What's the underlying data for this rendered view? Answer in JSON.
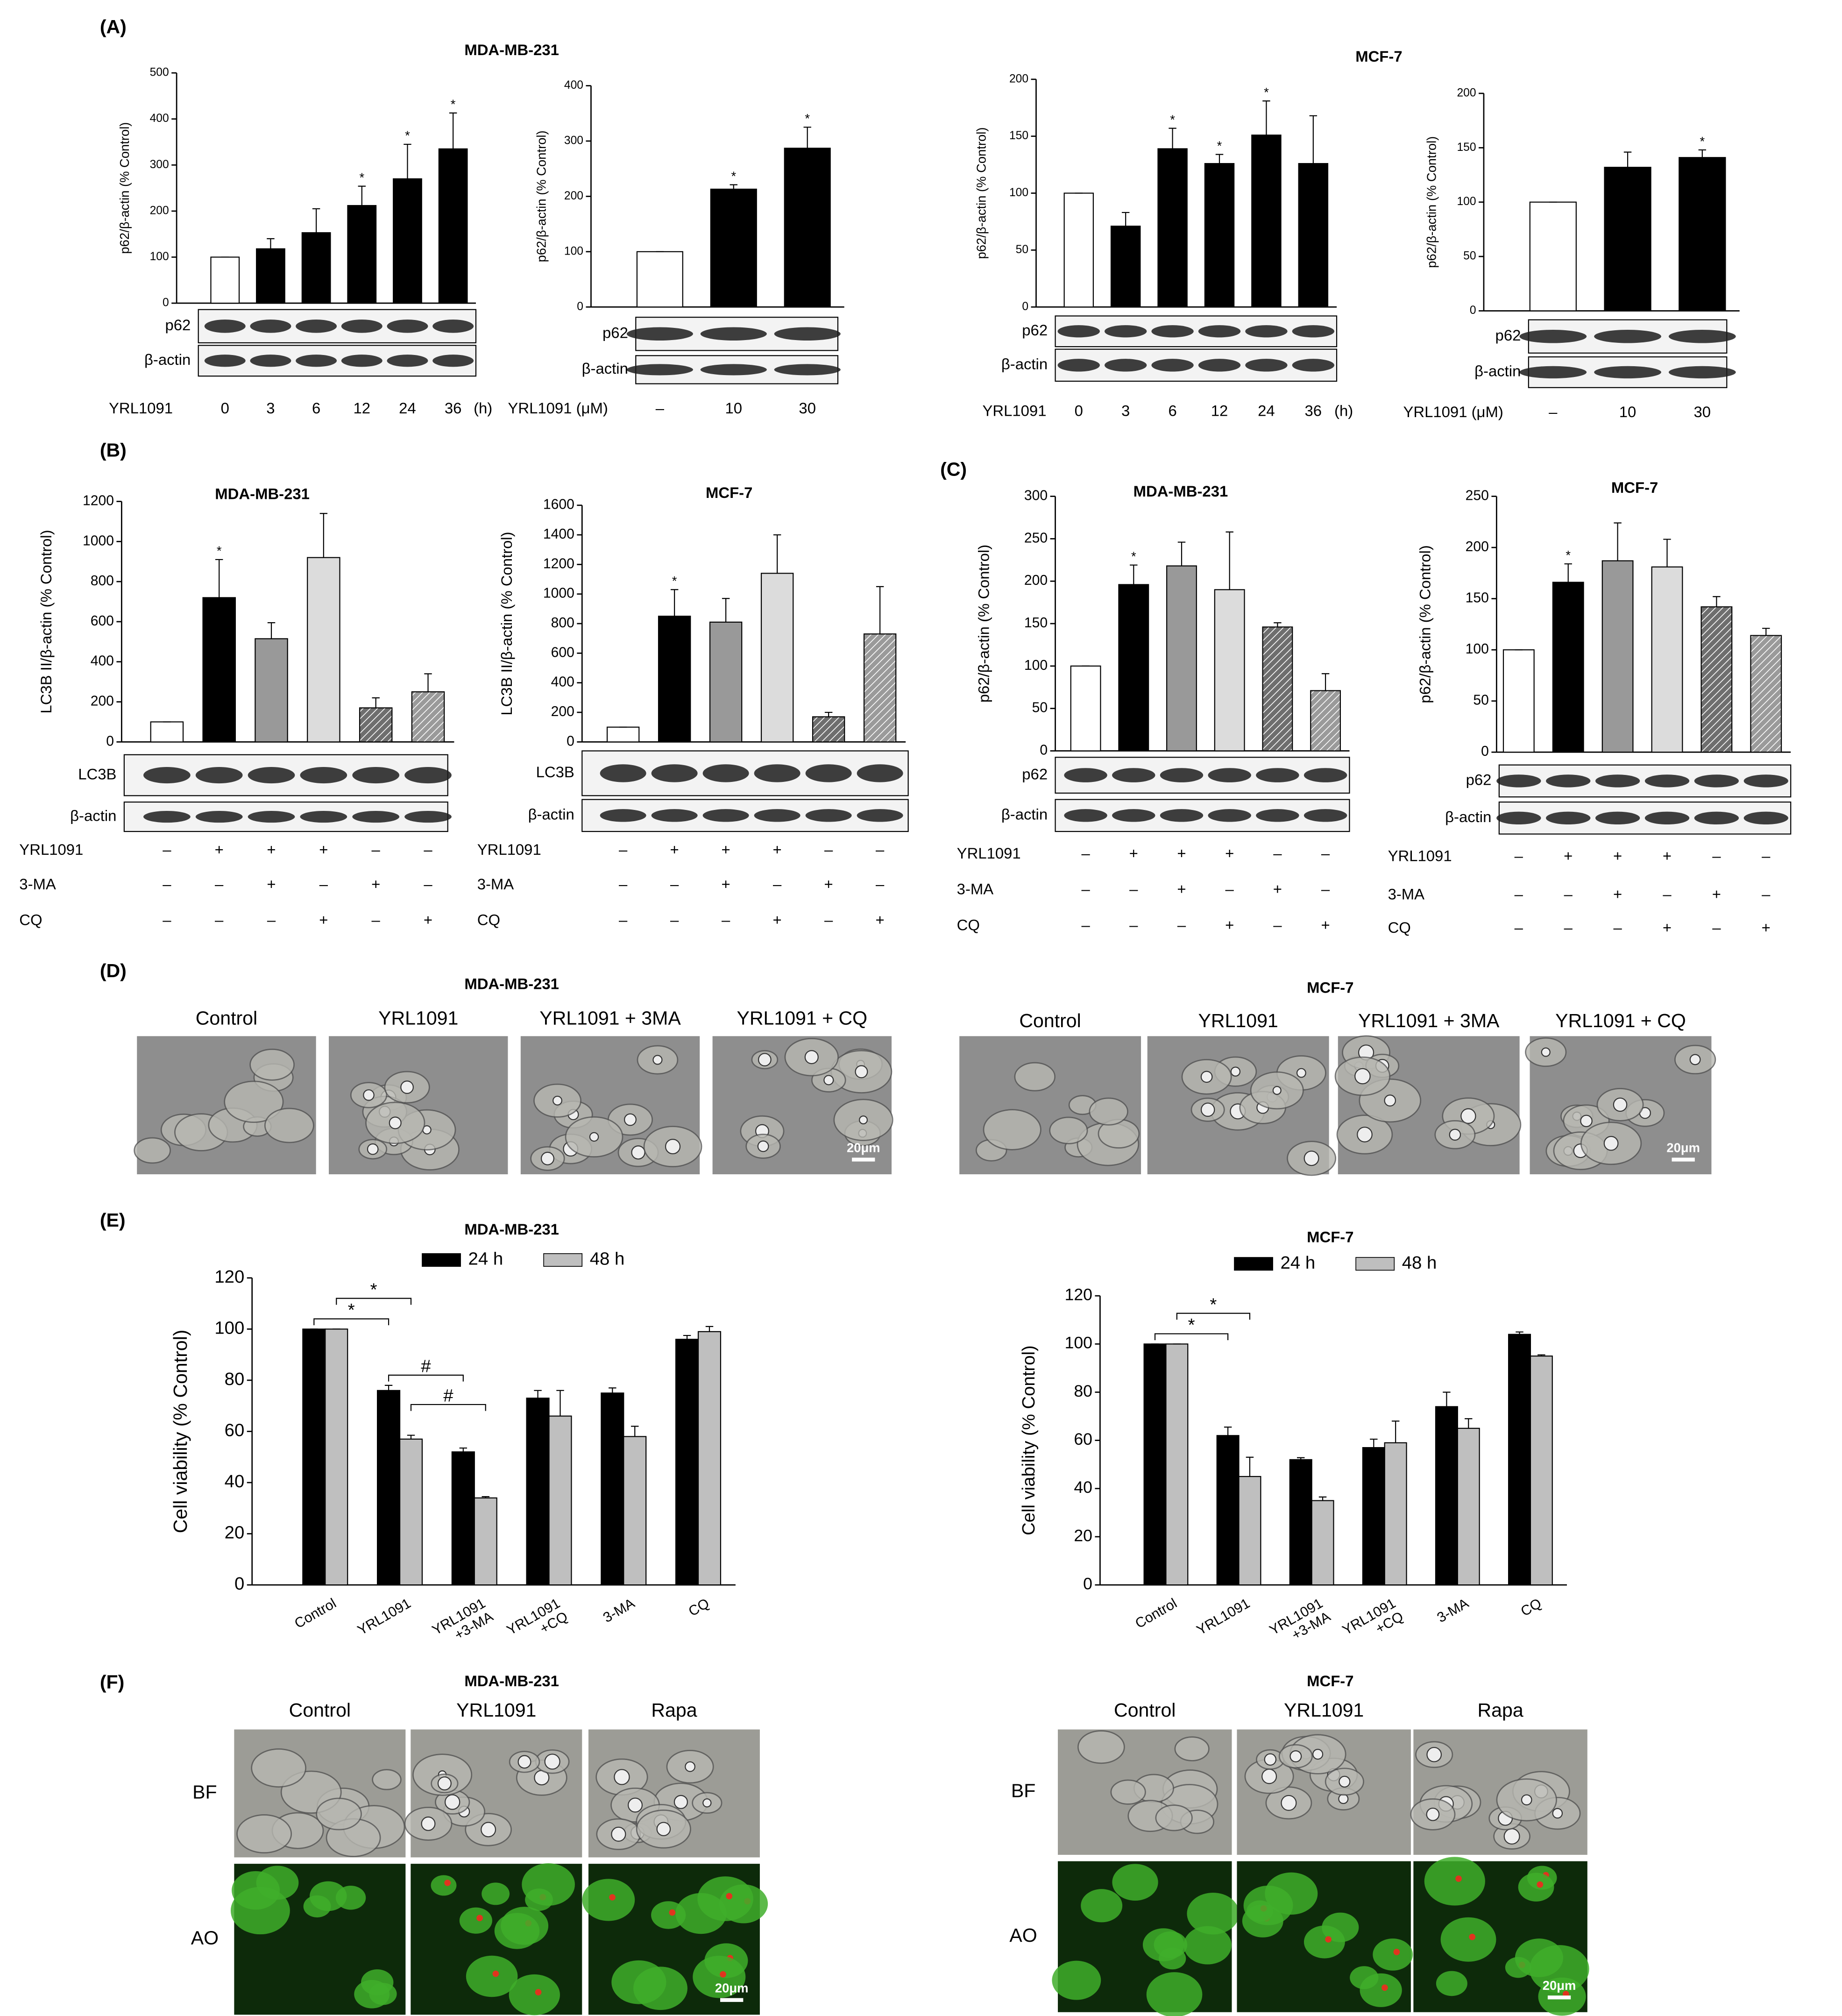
{
  "chart_data": [
    {
      "type": "bar",
      "panel": "(A)",
      "title": "MDA-MB-231",
      "ylabel": "p62/β-actin (% Control)",
      "values": [
        100,
        118,
        153,
        212,
        270,
        335
      ],
      "errors": [
        0,
        22,
        52,
        42,
        75,
        78
      ],
      "significance": [
        null,
        null,
        null,
        "*",
        "*",
        "*"
      ],
      "colors": [
        "#ffffff",
        "#000000",
        "#000000",
        "#000000",
        "#000000",
        "#000000"
      ],
      "ylim": [
        0,
        500
      ],
      "yticks": [
        0,
        100,
        200,
        300,
        400,
        500
      ],
      "blot_labels": [
        "p62",
        "β-actin"
      ],
      "treatments": [
        {
          "name": "YRL1091",
          "values": [
            "0",
            "3",
            "6",
            "12",
            "24",
            "36"
          ]
        }
      ],
      "x_unit": "(h)"
    },
    {
      "type": "bar",
      "ylabel": "p62/β-actin (% Control)",
      "values": [
        100,
        213,
        287
      ],
      "errors": [
        0,
        8,
        38
      ],
      "significance": [
        null,
        "*",
        "*"
      ],
      "colors": [
        "#ffffff",
        "#000000",
        "#000000"
      ],
      "ylim": [
        0,
        400
      ],
      "yticks": [
        0,
        100,
        200,
        300,
        400
      ],
      "blot_labels": [
        "p62",
        "β-actin"
      ],
      "treatments": [
        {
          "name": "YRL1091 (μM)",
          "values": [
            "–",
            "10",
            "30"
          ]
        }
      ]
    },
    {
      "type": "bar",
      "title": "MCF-7",
      "ylabel": "p62/β-actin (% Control)",
      "values": [
        100,
        71,
        139,
        126,
        151,
        126
      ],
      "errors": [
        0,
        12,
        18,
        8,
        30,
        42
      ],
      "significance": [
        null,
        null,
        "*",
        "*",
        "*",
        null
      ],
      "colors": [
        "#ffffff",
        "#000000",
        "#000000",
        "#000000",
        "#000000",
        "#000000"
      ],
      "ylim": [
        0,
        200
      ],
      "yticks": [
        0,
        50,
        100,
        150,
        200
      ],
      "blot_labels": [
        "p62",
        "β-actin"
      ],
      "treatments": [
        {
          "name": "YRL1091",
          "values": [
            "0",
            "3",
            "6",
            "12",
            "24",
            "36"
          ]
        }
      ],
      "x_unit": "(h)"
    },
    {
      "type": "bar",
      "ylabel": "p62/β-actin (% Control)",
      "values": [
        100,
        132,
        141
      ],
      "errors": [
        0,
        14,
        7
      ],
      "significance": [
        null,
        null,
        "*"
      ],
      "colors": [
        "#ffffff",
        "#000000",
        "#000000"
      ],
      "ylim": [
        0,
        200
      ],
      "yticks": [
        0,
        50,
        100,
        150,
        200
      ],
      "blot_labels": [
        "p62",
        "β-actin"
      ],
      "treatments": [
        {
          "name": "YRL1091 (μM)",
          "values": [
            "–",
            "10",
            "30"
          ]
        }
      ]
    },
    {
      "type": "bar",
      "panel": "(B)",
      "title": "MDA-MB-231",
      "ylabel": "LC3B II/β-actin (% Control)",
      "values": [
        100,
        720,
        515,
        920,
        170,
        250
      ],
      "errors": [
        0,
        190,
        80,
        220,
        50,
        90
      ],
      "significance": [
        null,
        "*",
        null,
        null,
        null,
        null
      ],
      "colors": [
        "#ffffff",
        "#000000",
        "#999999",
        "#dcdcdc",
        "#6e6e6e",
        "#9a9a9a"
      ],
      "hatched": [
        false,
        false,
        false,
        false,
        true,
        true
      ],
      "ylim": [
        0,
        1200
      ],
      "yticks": [
        0,
        200,
        400,
        600,
        800,
        1000,
        1200
      ],
      "blot_labels": [
        "LC3B",
        "β-actin"
      ],
      "treatments": [
        {
          "name": "YRL1091",
          "values": [
            "–",
            "+",
            "+",
            "+",
            "–",
            "–"
          ]
        },
        {
          "name": "3-MA",
          "values": [
            "–",
            "–",
            "+",
            "–",
            "+",
            "–"
          ]
        },
        {
          "name": "CQ",
          "values": [
            "–",
            "–",
            "–",
            "+",
            "–",
            "+"
          ]
        }
      ]
    },
    {
      "type": "bar",
      "title": "MCF-7",
      "ylabel": "LC3B II/β-actin (% Control)",
      "values": [
        100,
        850,
        810,
        1140,
        170,
        730
      ],
      "errors": [
        0,
        180,
        160,
        260,
        30,
        320
      ],
      "significance": [
        null,
        "*",
        null,
        null,
        null,
        null
      ],
      "colors": [
        "#ffffff",
        "#000000",
        "#999999",
        "#dcdcdc",
        "#6e6e6e",
        "#9a9a9a"
      ],
      "hatched": [
        false,
        false,
        false,
        false,
        true,
        true
      ],
      "ylim": [
        0,
        1600
      ],
      "yticks": [
        0,
        200,
        400,
        600,
        800,
        1000,
        1200,
        1400,
        1600
      ],
      "blot_labels": [
        "LC3B",
        "β-actin"
      ],
      "treatments": [
        {
          "name": "YRL1091",
          "values": [
            "–",
            "+",
            "+",
            "+",
            "–",
            "–"
          ]
        },
        {
          "name": "3-MA",
          "values": [
            "–",
            "–",
            "+",
            "–",
            "+",
            "–"
          ]
        },
        {
          "name": "CQ",
          "values": [
            "–",
            "–",
            "–",
            "+",
            "–",
            "+"
          ]
        }
      ]
    },
    {
      "type": "bar",
      "panel": "(C)",
      "title": "MDA-MB-231",
      "ylabel": "p62/β-actin (% Control)",
      "values": [
        100,
        196,
        218,
        190,
        146,
        71
      ],
      "errors": [
        0,
        23,
        28,
        68,
        5,
        20
      ],
      "significance": [
        null,
        "*",
        null,
        null,
        null,
        null
      ],
      "colors": [
        "#ffffff",
        "#000000",
        "#999999",
        "#dcdcdc",
        "#6e6e6e",
        "#9a9a9a"
      ],
      "hatched": [
        false,
        false,
        false,
        false,
        true,
        true
      ],
      "ylim": [
        0,
        300
      ],
      "yticks": [
        0,
        50,
        100,
        150,
        200,
        250,
        300
      ],
      "blot_labels": [
        "p62",
        "β-actin"
      ],
      "treatments": [
        {
          "name": "YRL1091",
          "values": [
            "–",
            "+",
            "+",
            "+",
            "–",
            "–"
          ]
        },
        {
          "name": "3-MA",
          "values": [
            "–",
            "–",
            "+",
            "–",
            "+",
            "–"
          ]
        },
        {
          "name": "CQ",
          "values": [
            "–",
            "–",
            "–",
            "+",
            "–",
            "+"
          ]
        }
      ]
    },
    {
      "type": "bar",
      "title": "MCF-7",
      "ylabel": "p62/β-actin (% Control)",
      "values": [
        100,
        166,
        187,
        181,
        142,
        114
      ],
      "errors": [
        0,
        18,
        37,
        27,
        10,
        7
      ],
      "significance": [
        null,
        "*",
        null,
        null,
        null,
        null
      ],
      "colors": [
        "#ffffff",
        "#000000",
        "#999999",
        "#dcdcdc",
        "#6e6e6e",
        "#9a9a9a"
      ],
      "hatched": [
        false,
        false,
        false,
        false,
        true,
        true
      ],
      "ylim": [
        0,
        250
      ],
      "yticks": [
        0,
        50,
        100,
        150,
        200,
        250
      ],
      "blot_labels": [
        "p62",
        "β-actin"
      ],
      "treatments": [
        {
          "name": "YRL1091",
          "values": [
            "–",
            "+",
            "+",
            "+",
            "–",
            "–"
          ]
        },
        {
          "name": "3-MA",
          "values": [
            "–",
            "–",
            "+",
            "–",
            "+",
            "–"
          ]
        },
        {
          "name": "CQ",
          "values": [
            "–",
            "–",
            "–",
            "+",
            "–",
            "+"
          ]
        }
      ]
    },
    {
      "type": "grouped-bar",
      "panel": "(E)",
      "title": "MDA-MB-231",
      "ylabel": "Cell viability (% Control)",
      "categories": [
        "Control",
        "YRL1091",
        "YRL1091\n+3-MA",
        "YRL1091\n+CQ",
        "3-MA",
        "CQ"
      ],
      "series": [
        {
          "name": "24 h",
          "color": "#000000",
          "values": [
            100,
            76,
            52,
            73,
            75,
            96
          ],
          "errors": [
            0,
            2,
            1.5,
            3,
            2,
            1.5
          ]
        },
        {
          "name": "48 h",
          "color": "#bfbfbf",
          "values": [
            100,
            57,
            34,
            66,
            58,
            99
          ],
          "errors": [
            0,
            1.5,
            0.5,
            10,
            4,
            2
          ]
        }
      ],
      "ylim": [
        0,
        120
      ],
      "yticks": [
        0,
        20,
        40,
        60,
        80,
        100,
        120
      ],
      "brackets": [
        {
          "text": "*",
          "series": [
            0,
            0
          ],
          "categories": [
            0,
            1
          ]
        },
        {
          "text": "*",
          "series": [
            1,
            1
          ],
          "categories": [
            0,
            1
          ]
        },
        {
          "text": "#",
          "series": [
            0,
            0
          ],
          "categories": [
            1,
            2
          ]
        },
        {
          "text": "#",
          "series": [
            1,
            1
          ],
          "categories": [
            1,
            2
          ]
        }
      ]
    },
    {
      "type": "grouped-bar",
      "title": "MCF-7",
      "ylabel": "Cell viability (% Control)",
      "categories": [
        "Control",
        "YRL1091",
        "YRL1091\n+3-MA",
        "YRL1091\n+CQ",
        "3-MA",
        "CQ"
      ],
      "series": [
        {
          "name": "24 h",
          "color": "#000000",
          "values": [
            100,
            62,
            52,
            57,
            74,
            104
          ],
          "errors": [
            0,
            3.5,
            0.8,
            3.5,
            6,
            1
          ]
        },
        {
          "name": "48 h",
          "color": "#bfbfbf",
          "values": [
            100,
            45,
            35,
            59,
            65,
            95
          ],
          "errors": [
            0,
            8,
            1.5,
            9,
            4,
            0.5
          ]
        }
      ],
      "ylim": [
        0,
        120
      ],
      "yticks": [
        0,
        20,
        40,
        60,
        80,
        100,
        120
      ],
      "brackets": [
        {
          "text": "*",
          "series": [
            0,
            0
          ],
          "categories": [
            0,
            1
          ]
        },
        {
          "text": "*",
          "series": [
            1,
            1
          ],
          "categories": [
            0,
            1
          ]
        }
      ]
    }
  ],
  "image_panels": [
    {
      "panel": "(D)",
      "title": "MDA-MB-231",
      "columns": [
        "Control",
        "YRL1091",
        "YRL1091 + 3MA",
        "YRL1091 + CQ"
      ],
      "scale_bar": "20μm"
    },
    {
      "title": "MCF-7",
      "columns": [
        "Control",
        "YRL1091",
        "YRL1091 + 3MA",
        "YRL1091 + CQ"
      ],
      "scale_bar": "20μm"
    },
    {
      "panel": "(F)",
      "title": "MDA-MB-231",
      "columns": [
        "Control",
        "YRL1091",
        "Rapa"
      ],
      "rows": [
        "BF",
        "AO"
      ],
      "scale_bar": "20μm"
    },
    {
      "title": "MCF-7",
      "columns": [
        "Control",
        "YRL1091",
        "Rapa"
      ],
      "rows": [
        "BF",
        "AO"
      ],
      "scale_bar": "20μm"
    }
  ]
}
